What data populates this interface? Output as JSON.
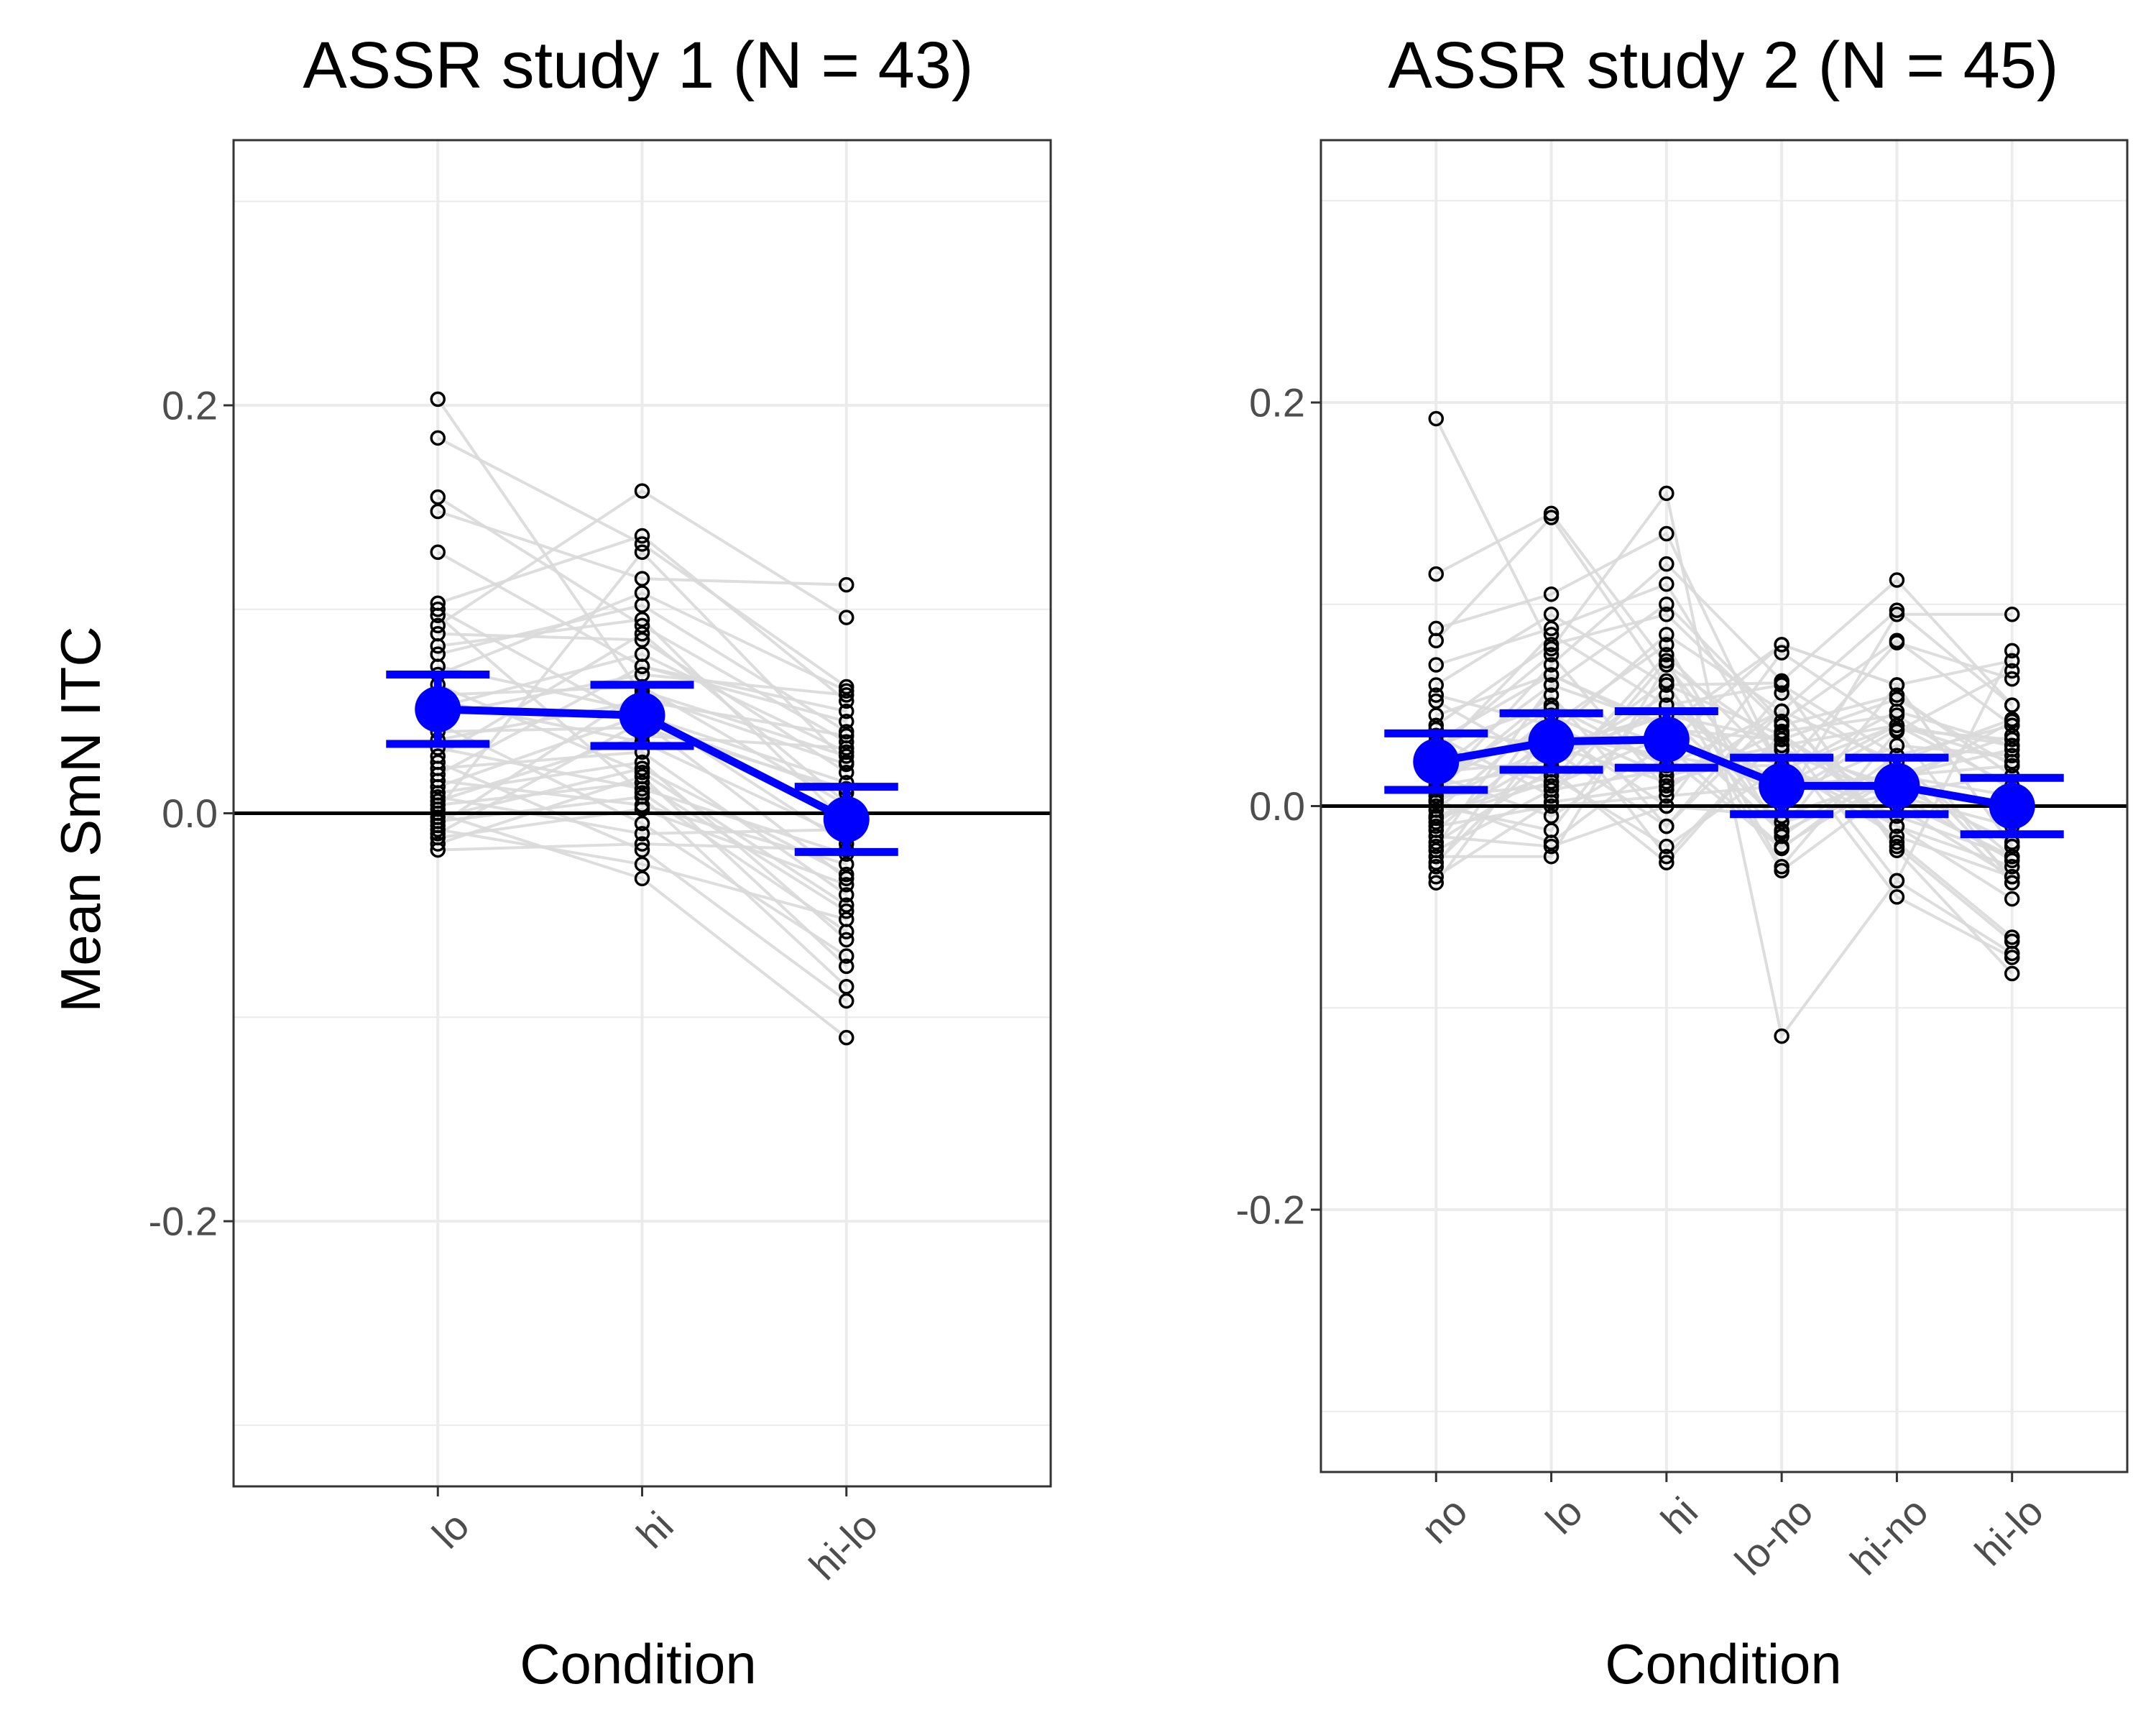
{
  "figure": {
    "ylabel": "Mean SmN ITC"
  },
  "chart_data": [
    {
      "type": "scatter",
      "title": "ASSR study 1 (N = 43)",
      "xlabel": "Condition",
      "ylabel": "Mean SmN ITC",
      "categories": [
        "lo",
        "hi",
        "hi-lo"
      ],
      "ylim": [
        -0.33,
        0.33
      ],
      "y_ticks": [
        -0.2,
        0.0,
        0.2
      ],
      "y_tick_labels": [
        "-0.2",
        "0.0",
        "0.2"
      ],
      "grid": true,
      "reference_line": 0,
      "colors": {
        "summary": "#0000ff",
        "points": "#000000",
        "subject_lines": "#d9d9d9",
        "grid": "#ebebeb"
      },
      "summary": {
        "mean": [
          0.051,
          0.048,
          -0.003
        ],
        "ci_low": [
          0.034,
          0.033,
          -0.019
        ],
        "ci_high": [
          0.068,
          0.063,
          0.013
        ]
      },
      "subjects": [
        [
          0.203,
          0.058,
          0.024
        ],
        [
          0.184,
          0.132,
          0.062
        ],
        [
          0.155,
          0.092,
          0.035
        ],
        [
          0.148,
          0.115,
          0.112
        ],
        [
          0.128,
          0.072,
          0.045
        ],
        [
          0.103,
          0.136,
          0.055
        ],
        [
          0.1,
          0.045,
          -0.032
        ],
        [
          0.097,
          0.01,
          -0.058
        ],
        [
          0.092,
          0.158,
          0.096
        ],
        [
          0.088,
          0.085,
          0.02
        ],
        [
          0.082,
          0.095,
          -0.005
        ],
        [
          0.078,
          0.102,
          0.04
        ],
        [
          0.072,
          0.05,
          -0.015
        ],
        [
          0.068,
          0.108,
          0.06
        ],
        [
          0.063,
          0.02,
          -0.045
        ],
        [
          0.058,
          0.062,
          0.004
        ],
        [
          0.055,
          0.035,
          -0.012
        ],
        [
          0.052,
          0.078,
          0.03
        ],
        [
          0.048,
          0.068,
          0.058
        ],
        [
          0.044,
          -0.005,
          -0.07
        ],
        [
          0.04,
          0.042,
          0.012
        ],
        [
          0.036,
          0.055,
          0.038
        ],
        [
          0.032,
          0.012,
          -0.02
        ],
        [
          0.028,
          0.088,
          0.005
        ],
        [
          0.025,
          -0.018,
          -0.092
        ],
        [
          0.022,
          0.03,
          -0.04
        ],
        [
          0.019,
          0.072,
          0.05
        ],
        [
          0.016,
          0.004,
          -0.025
        ],
        [
          0.013,
          0.048,
          0.015
        ],
        [
          0.01,
          0.025,
          -0.062
        ],
        [
          0.008,
          -0.01,
          -0.008
        ],
        [
          0.006,
          0.038,
          0.032
        ],
        [
          0.004,
          0.015,
          -0.048
        ],
        [
          0.002,
          0.128,
          0.025
        ],
        [
          0.0,
          -0.032,
          -0.11
        ],
        [
          -0.002,
          0.022,
          -0.03
        ],
        [
          -0.004,
          0.008,
          -0.085
        ],
        [
          -0.006,
          0.06,
          0.028
        ],
        [
          -0.008,
          -0.025,
          -0.052
        ],
        [
          -0.01,
          0.045,
          0.01
        ],
        [
          -0.012,
          0.002,
          -0.035
        ],
        [
          -0.015,
          0.018,
          -0.075
        ],
        [
          -0.018,
          -0.015,
          -0.018
        ]
      ]
    },
    {
      "type": "scatter",
      "title": "ASSR study 2 (N = 45)",
      "xlabel": "Condition",
      "ylabel": "",
      "categories": [
        "no",
        "lo",
        "hi",
        "lo-no",
        "hi-no",
        "hi-lo"
      ],
      "ylim": [
        -0.33,
        0.33
      ],
      "y_ticks": [
        -0.2,
        0.0,
        0.2
      ],
      "y_tick_labels": [
        "-0.2",
        "0.0",
        "0.2"
      ],
      "grid": true,
      "reference_line": 0,
      "colors": {
        "summary": "#0000ff",
        "points": "#000000",
        "subject_lines": "#d9d9d9",
        "grid": "#ebebeb"
      },
      "summary": {
        "mean": [
          0.022,
          0.032,
          0.033,
          0.01,
          0.01,
          0.0
        ],
        "ci_low": [
          0.008,
          0.018,
          0.019,
          -0.004,
          -0.004,
          -0.014
        ],
        "ci_high": [
          0.036,
          0.046,
          0.047,
          0.024,
          0.024,
          0.014
        ]
      },
      "subjects": [
        [
          0.192,
          0.078,
          0.155,
          -0.114,
          -0.037,
          0.077
        ],
        [
          0.115,
          0.145,
          0.07,
          0.03,
          -0.045,
          -0.075
        ],
        [
          0.088,
          0.105,
          0.135,
          0.017,
          0.047,
          0.03
        ],
        [
          0.082,
          0.143,
          0.06,
          0.061,
          -0.022,
          -0.083
        ],
        [
          0.07,
          0.088,
          0.11,
          0.018,
          0.04,
          0.022
        ],
        [
          0.06,
          0.095,
          0.06,
          0.035,
          0.0,
          -0.035
        ],
        [
          0.055,
          0.04,
          0.08,
          -0.015,
          0.025,
          0.04
        ],
        [
          0.052,
          0.02,
          0.062,
          -0.032,
          0.01,
          0.042
        ],
        [
          0.045,
          0.065,
          0.04,
          0.02,
          -0.005,
          -0.025
        ],
        [
          0.04,
          0.08,
          0.095,
          0.04,
          0.055,
          0.015
        ],
        [
          0.038,
          0.03,
          0.045,
          -0.008,
          0.007,
          0.015
        ],
        [
          0.035,
          0.005,
          0.072,
          -0.03,
          0.037,
          0.067
        ],
        [
          0.03,
          0.05,
          0.02,
          0.02,
          -0.01,
          -0.03
        ],
        [
          0.028,
          0.075,
          0.008,
          0.047,
          -0.02,
          -0.067
        ],
        [
          0.025,
          0.012,
          0.04,
          -0.013,
          0.015,
          0.028
        ],
        [
          0.02,
          0.035,
          0.025,
          0.015,
          0.005,
          -0.01
        ],
        [
          0.018,
          0.06,
          0.1,
          0.042,
          0.082,
          0.04
        ],
        [
          0.015,
          -0.005,
          0.03,
          -0.02,
          0.015,
          0.035
        ],
        [
          0.012,
          0.04,
          0.015,
          0.028,
          0.003,
          -0.025
        ],
        [
          0.01,
          0.02,
          0.05,
          0.01,
          0.04,
          0.03
        ],
        [
          0.008,
          0.055,
          -0.01,
          0.047,
          -0.018,
          -0.065
        ],
        [
          0.005,
          0.01,
          0.035,
          0.005,
          0.03,
          0.025
        ],
        [
          0.002,
          0.03,
          0.012,
          0.028,
          0.01,
          -0.018
        ],
        [
          0.0,
          -0.012,
          0.06,
          -0.012,
          0.06,
          0.072
        ],
        [
          -0.002,
          0.045,
          0.02,
          0.047,
          0.022,
          -0.025
        ],
        [
          -0.005,
          0.015,
          -0.02,
          0.02,
          -0.015,
          -0.035
        ],
        [
          -0.008,
          0.025,
          0.045,
          0.033,
          0.053,
          0.02
        ],
        [
          -0.01,
          0.0,
          0.005,
          0.01,
          0.015,
          0.005
        ],
        [
          -0.012,
          0.035,
          0.085,
          0.047,
          0.097,
          0.05
        ],
        [
          -0.015,
          -0.02,
          0.0,
          -0.005,
          0.015,
          0.02
        ],
        [
          -0.018,
          0.018,
          -0.028,
          0.036,
          -0.01,
          -0.046
        ],
        [
          -0.02,
          0.06,
          0.04,
          0.08,
          0.06,
          -0.02
        ],
        [
          -0.022,
          0.008,
          0.018,
          0.03,
          0.04,
          0.01
        ],
        [
          -0.025,
          -0.025,
          0.07,
          0.0,
          0.095,
          0.095
        ],
        [
          -0.028,
          0.028,
          -0.01,
          0.056,
          0.018,
          -0.038
        ],
        [
          -0.03,
          0.05,
          0.03,
          0.08,
          0.06,
          -0.02
        ],
        [
          -0.035,
          0.002,
          0.01,
          0.037,
          0.045,
          0.008
        ],
        [
          -0.038,
          0.038,
          0.0,
          0.076,
          0.038,
          -0.038
        ],
        [
          0.008,
          0.07,
          0.12,
          0.062,
          0.112,
          0.05
        ],
        [
          0.003,
          -0.018,
          0.025,
          -0.021,
          0.022,
          0.043
        ],
        [
          0.012,
          0.048,
          -0.025,
          0.036,
          -0.037,
          -0.073
        ],
        [
          0.017,
          0.022,
          0.055,
          0.005,
          0.038,
          0.033
        ],
        [
          0.025,
          0.085,
          0.05,
          0.06,
          0.025,
          -0.035
        ],
        [
          -0.006,
          0.012,
          0.075,
          0.018,
          0.081,
          0.063
        ],
        [
          0.032,
          0.065,
          0.038,
          0.033,
          0.006,
          -0.027
        ]
      ]
    }
  ]
}
